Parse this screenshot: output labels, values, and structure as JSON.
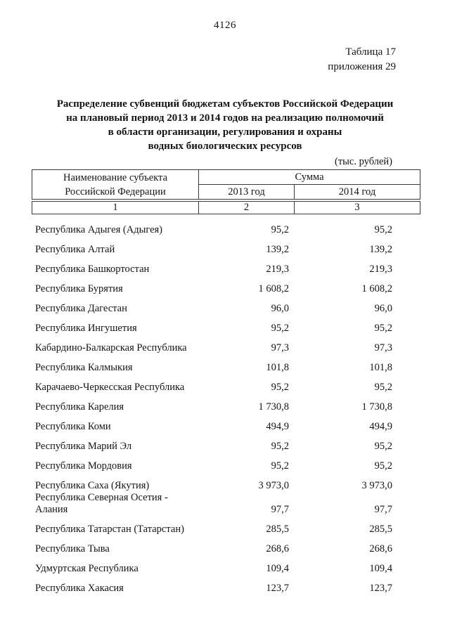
{
  "page": {
    "number": "4126",
    "table_label": "Таблица 17",
    "appendix_label": "приложения 29",
    "title_lines": [
      "Распределение субвенций бюджетам субъектов Российской Федерации",
      "на плановый период 2013 и 2014 годов на реализацию полномочий",
      "в области организации, регулирования и охраны",
      "водных биологических ресурсов"
    ],
    "units_note": "(тыс. рублей)"
  },
  "table": {
    "header": {
      "subject_line1": "Наименование субъекта",
      "subject_line2": "Российской Федерации",
      "group": "Сумма",
      "year_2013": "2013 год",
      "year_2014": "2014 год",
      "col_numbers": [
        "1",
        "2",
        "3"
      ]
    },
    "rows": [
      {
        "name": "Республика Адыгея (Адыгея)",
        "y2013": "95,2",
        "y2014": "95,2"
      },
      {
        "name": "Республика Алтай",
        "y2013": "139,2",
        "y2014": "139,2"
      },
      {
        "name": "Республика Башкортостан",
        "y2013": "219,3",
        "y2014": "219,3"
      },
      {
        "name": "Республика Бурятия",
        "y2013": "1 608,2",
        "y2014": "1 608,2"
      },
      {
        "name": "Республика Дагестан",
        "y2013": "96,0",
        "y2014": "96,0"
      },
      {
        "name": "Республика Ингушетия",
        "y2013": "95,2",
        "y2014": "95,2"
      },
      {
        "name": "Кабардино-Балкарская Республика",
        "y2013": "97,3",
        "y2014": "97,3"
      },
      {
        "name": "Республика Калмыкия",
        "y2013": "101,8",
        "y2014": "101,8"
      },
      {
        "name": "Карачаево-Черкесская Республика",
        "y2013": "95,2",
        "y2014": "95,2"
      },
      {
        "name": "Республика Карелия",
        "y2013": "1 730,8",
        "y2014": "1 730,8"
      },
      {
        "name": "Республика Коми",
        "y2013": "494,9",
        "y2014": "494,9"
      },
      {
        "name": "Республика Марий Эл",
        "y2013": "95,2",
        "y2014": "95,2"
      },
      {
        "name": "Республика Мордовия",
        "y2013": "95,2",
        "y2014": "95,2"
      },
      {
        "name": "Республика Саха (Якутия)",
        "y2013": "3 973,0",
        "y2014": "3 973,0"
      },
      {
        "name": "Республика Северная Осетия - Алания",
        "y2013": "97,7",
        "y2014": "97,7"
      },
      {
        "name": "Республика Татарстан (Татарстан)",
        "y2013": "285,5",
        "y2014": "285,5"
      },
      {
        "name": "Республика Тыва",
        "y2013": "268,6",
        "y2014": "268,6"
      },
      {
        "name": "Удмуртская Республика",
        "y2013": "109,4",
        "y2014": "109,4"
      },
      {
        "name": "Республика Хакасия",
        "y2013": "123,7",
        "y2014": "123,7"
      }
    ]
  }
}
